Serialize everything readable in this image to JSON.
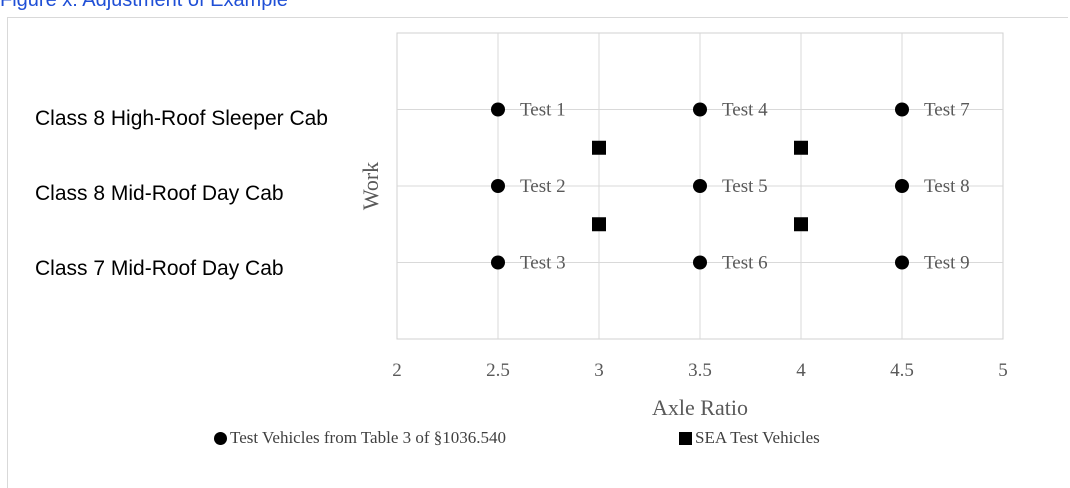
{
  "caption": "Figure x: Adjustment of Example",
  "category_labels": [
    "Class 8 High-Roof Sleeper Cab",
    "Class 8 Mid-Roof Day Cab",
    "Class 7 Mid-Roof Day Cab"
  ],
  "chart_data": {
    "type": "scatter",
    "xlabel": "Axle Ratio",
    "ylabel": "Work",
    "xlim": [
      2,
      5
    ],
    "x_ticks": [
      "2",
      "2.5",
      "3",
      "3.5",
      "4",
      "4.5",
      "5"
    ],
    "ylim": [
      0,
      4
    ],
    "grid": true,
    "legend": "bottom",
    "series": [
      {
        "name": "Test Vehicles from Table 3 of §1036.540",
        "marker": "circle",
        "color": "#000000",
        "points": [
          {
            "x": 2.5,
            "y": 3,
            "label": "Test 1"
          },
          {
            "x": 3.5,
            "y": 3,
            "label": "Test 4"
          },
          {
            "x": 4.5,
            "y": 3,
            "label": "Test 7"
          },
          {
            "x": 2.5,
            "y": 2,
            "label": "Test 2"
          },
          {
            "x": 3.5,
            "y": 2,
            "label": "Test 5"
          },
          {
            "x": 4.5,
            "y": 2,
            "label": "Test 8"
          },
          {
            "x": 2.5,
            "y": 1,
            "label": "Test 3"
          },
          {
            "x": 3.5,
            "y": 1,
            "label": "Test 6"
          },
          {
            "x": 4.5,
            "y": 1,
            "label": "Test 9"
          }
        ]
      },
      {
        "name": "SEA Test Vehicles",
        "marker": "square",
        "color": "#000000",
        "points": [
          {
            "x": 3,
            "y": 2.5
          },
          {
            "x": 4,
            "y": 2.5
          },
          {
            "x": 3,
            "y": 1.5
          },
          {
            "x": 4,
            "y": 1.5
          }
        ]
      }
    ]
  }
}
